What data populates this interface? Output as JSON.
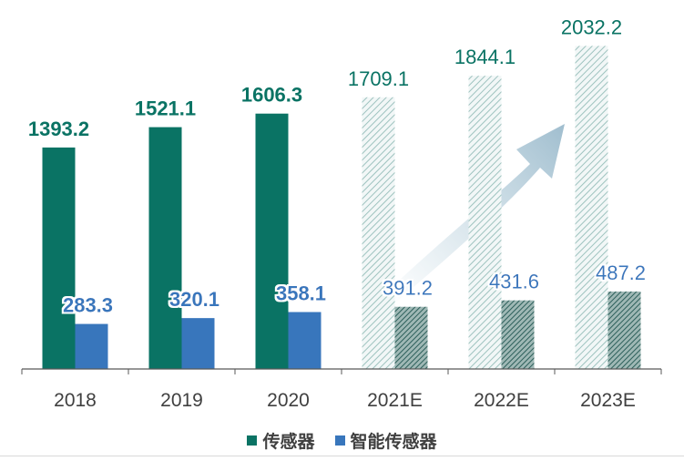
{
  "colors": {
    "sensor": "#0a7364",
    "smart": "#3876bc",
    "sensor_label": "#0a7364",
    "smart_label": "#3876bc",
    "axis": "#595959",
    "tick_text": "#404040"
  },
  "chart_data": {
    "type": "bar",
    "categories": [
      "2018",
      "2019",
      "2020",
      "2021E",
      "2022E",
      "2023E"
    ],
    "forecast": [
      false,
      false,
      false,
      true,
      true,
      true
    ],
    "series": [
      {
        "name": "传感器",
        "values": [
          1393.2,
          1521.1,
          1606.3,
          1709.1,
          1844.1,
          2032.2
        ]
      },
      {
        "name": "智能传感器",
        "values": [
          283.3,
          320.1,
          358.1,
          391.2,
          431.6,
          487.2
        ]
      }
    ],
    "data_labels": [
      [
        "1393.2",
        "1521.1",
        "1606.3",
        "1709.1",
        "1844.1",
        "2032.2"
      ],
      [
        "283.3",
        "320.1",
        "358.1",
        "391.2",
        "431.6",
        "487.2"
      ]
    ],
    "ylim": [
      0,
      2150
    ],
    "grid": false,
    "legend_position": "bottom",
    "trend_arrow": true
  }
}
